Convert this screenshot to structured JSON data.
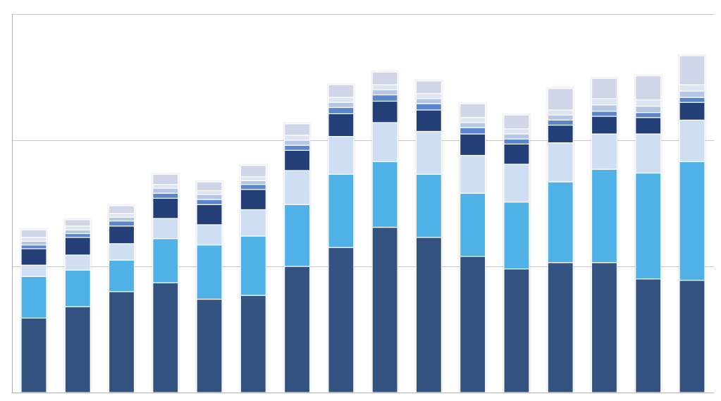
{
  "chart_data": {
    "type": "bar",
    "stacked": true,
    "title": "",
    "xlabel": "",
    "ylabel": "",
    "ylim": [
      0,
      3
    ],
    "gridlines": [
      1,
      2,
      3
    ],
    "grid": true,
    "legend": "none",
    "tick_labels_visible": false,
    "categories": [
      "1",
      "2",
      "3",
      "4",
      "5",
      "6",
      "7",
      "8",
      "9",
      "10",
      "11",
      "12",
      "13",
      "14",
      "15",
      "16"
    ],
    "series": [
      {
        "color": "#34527f",
        "values": [
          0.59,
          0.68,
          0.8,
          0.87,
          0.74,
          0.77,
          1.0,
          1.15,
          1.31,
          1.23,
          1.08,
          0.98,
          1.03,
          1.03,
          0.9,
          0.89
        ]
      },
      {
        "color": "#4fb1e6",
        "values": [
          0.33,
          0.29,
          0.25,
          0.35,
          0.43,
          0.47,
          0.49,
          0.58,
          0.52,
          0.5,
          0.5,
          0.53,
          0.64,
          0.74,
          0.84,
          0.94
        ]
      },
      {
        "color": "#cfdef3",
        "values": [
          0.09,
          0.12,
          0.13,
          0.16,
          0.16,
          0.21,
          0.27,
          0.3,
          0.31,
          0.34,
          0.3,
          0.3,
          0.31,
          0.28,
          0.31,
          0.33
        ]
      },
      {
        "color": "#243f78",
        "values": [
          0.13,
          0.14,
          0.14,
          0.16,
          0.16,
          0.16,
          0.16,
          0.18,
          0.17,
          0.17,
          0.17,
          0.16,
          0.14,
          0.14,
          0.13,
          0.14
        ]
      },
      {
        "color": "#5b86cd",
        "values": [
          0.03,
          0.03,
          0.04,
          0.04,
          0.04,
          0.04,
          0.04,
          0.05,
          0.05,
          0.05,
          0.05,
          0.04,
          0.04,
          0.04,
          0.04,
          0.04
        ]
      },
      {
        "color": "#b6c7e6",
        "values": [
          0.03,
          0.03,
          0.03,
          0.04,
          0.04,
          0.03,
          0.04,
          0.04,
          0.04,
          0.04,
          0.04,
          0.04,
          0.04,
          0.05,
          0.05,
          0.05
        ]
      },
      {
        "color": "#dde4f2",
        "values": [
          0.03,
          0.03,
          0.03,
          0.03,
          0.03,
          0.03,
          0.04,
          0.04,
          0.04,
          0.04,
          0.04,
          0.04,
          0.04,
          0.05,
          0.05,
          0.05
        ]
      },
      {
        "color": "#d0d5e8",
        "values": [
          0.06,
          0.05,
          0.06,
          0.08,
          0.07,
          0.09,
          0.09,
          0.1,
          0.1,
          0.1,
          0.11,
          0.11,
          0.17,
          0.16,
          0.19,
          0.23
        ]
      }
    ]
  }
}
